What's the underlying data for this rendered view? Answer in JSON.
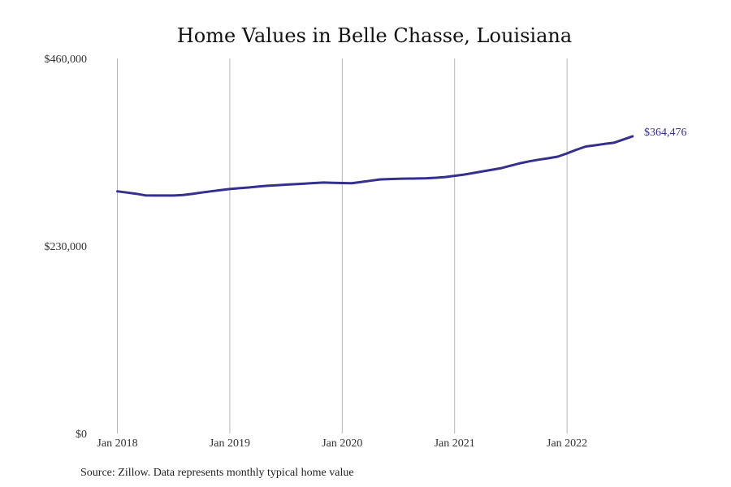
{
  "chart_data": {
    "type": "line",
    "title": "Home Values in Belle Chasse, Louisiana",
    "xlabel": "",
    "ylabel": "",
    "x_tick_labels": [
      "Jan 2018",
      "Jan 2019",
      "Jan 2020",
      "Jan 2021",
      "Jan 2022"
    ],
    "y_tick_labels": [
      "$460,000",
      "$230,000",
      "$0"
    ],
    "y_ticks": [
      460000,
      230000,
      0
    ],
    "ylim": [
      0,
      460000
    ],
    "x_range": [
      "2018-01",
      "2022-12"
    ],
    "grid": "vertical",
    "color": "#35308f",
    "series": [
      {
        "x": [
          "2018-01",
          "2018-02",
          "2018-03",
          "2018-04",
          "2018-05",
          "2018-06",
          "2018-07",
          "2018-08",
          "2018-09",
          "2018-10",
          "2018-11",
          "2018-12",
          "2019-01",
          "2019-02",
          "2019-03",
          "2019-04",
          "2019-05",
          "2019-06",
          "2019-07",
          "2019-08",
          "2019-09",
          "2019-10",
          "2019-11",
          "2019-12",
          "2020-01",
          "2020-02",
          "2020-03",
          "2020-04",
          "2020-05",
          "2020-06",
          "2020-07",
          "2020-08",
          "2020-09",
          "2020-10",
          "2020-11",
          "2020-12",
          "2021-01",
          "2021-02",
          "2021-03",
          "2021-04",
          "2021-05",
          "2021-06",
          "2021-07",
          "2021-08",
          "2021-09",
          "2021-10",
          "2021-11",
          "2021-12",
          "2022-01",
          "2022-02",
          "2022-03",
          "2022-04",
          "2022-05",
          "2022-06",
          "2022-07",
          "2022-08"
        ],
        "values": [
          297000,
          295500,
          294000,
          292000,
          291800,
          291800,
          291800,
          292500,
          293800,
          295500,
          297000,
          298500,
          299800,
          300800,
          301700,
          302800,
          303800,
          304500,
          305200,
          305800,
          306500,
          307200,
          307800,
          307500,
          307200,
          307000,
          308500,
          310000,
          311500,
          312000,
          312300,
          312600,
          312700,
          313000,
          313600,
          314500,
          316000,
          317500,
          319500,
          321500,
          323500,
          325500,
          328500,
          331500,
          333800,
          335800,
          337500,
          339500,
          343500,
          348000,
          352000,
          353500,
          355200,
          356500,
          360500,
          364476
        ],
        "end_label": "$364,476"
      }
    ],
    "source": "Source: Zillow. Data represents monthly typical home value"
  }
}
